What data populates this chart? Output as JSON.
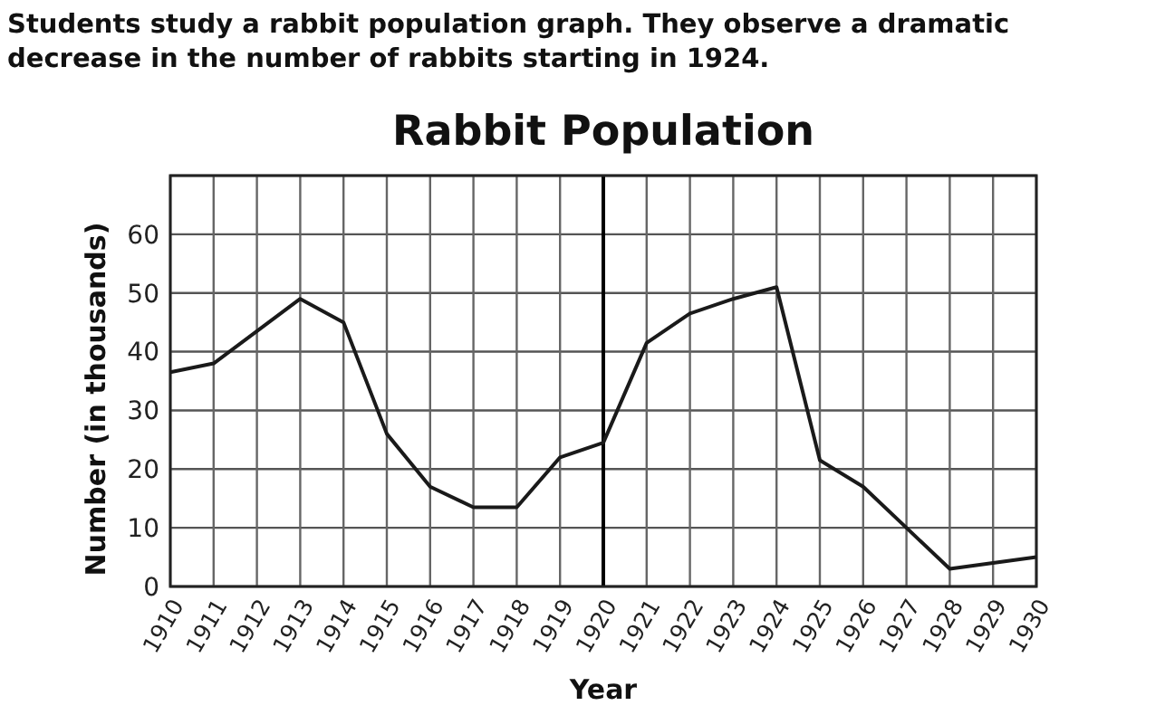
{
  "chart_data": {
    "type": "line",
    "title": "Rabbit Population",
    "annotations": [
      "Students study a rabbit population graph. They observe a dramatic decrease in the number of rabbits starting in 1924."
    ],
    "xlabel": "Year",
    "ylabel": "Number (in thousands)",
    "categories": [
      "1910",
      "1911",
      "1912",
      "1913",
      "1914",
      "1915",
      "1916",
      "1917",
      "1918",
      "1919",
      "1920",
      "1921",
      "1922",
      "1923",
      "1924",
      "1925",
      "1926",
      "1927",
      "1928",
      "1929",
      "1930"
    ],
    "series": [
      {
        "color": "#1a1a1a",
        "values": [
          36.5,
          38,
          43.5,
          49,
          45,
          26,
          17,
          13.5,
          13.5,
          22,
          24.5,
          41.5,
          46.5,
          49,
          51,
          21.5,
          17,
          10,
          3,
          4,
          5
        ]
      }
    ],
    "ylim": [
      0,
      70
    ],
    "yticks": [
      0,
      10,
      20,
      30,
      40,
      50,
      60,
      {
        "value": 70,
        "label": null
      }
    ],
    "grid": true,
    "marker": "none",
    "line_style": "solid",
    "ref_lines": [
      {
        "axis": "x",
        "value": "1920",
        "color": "#000000"
      }
    ]
  }
}
